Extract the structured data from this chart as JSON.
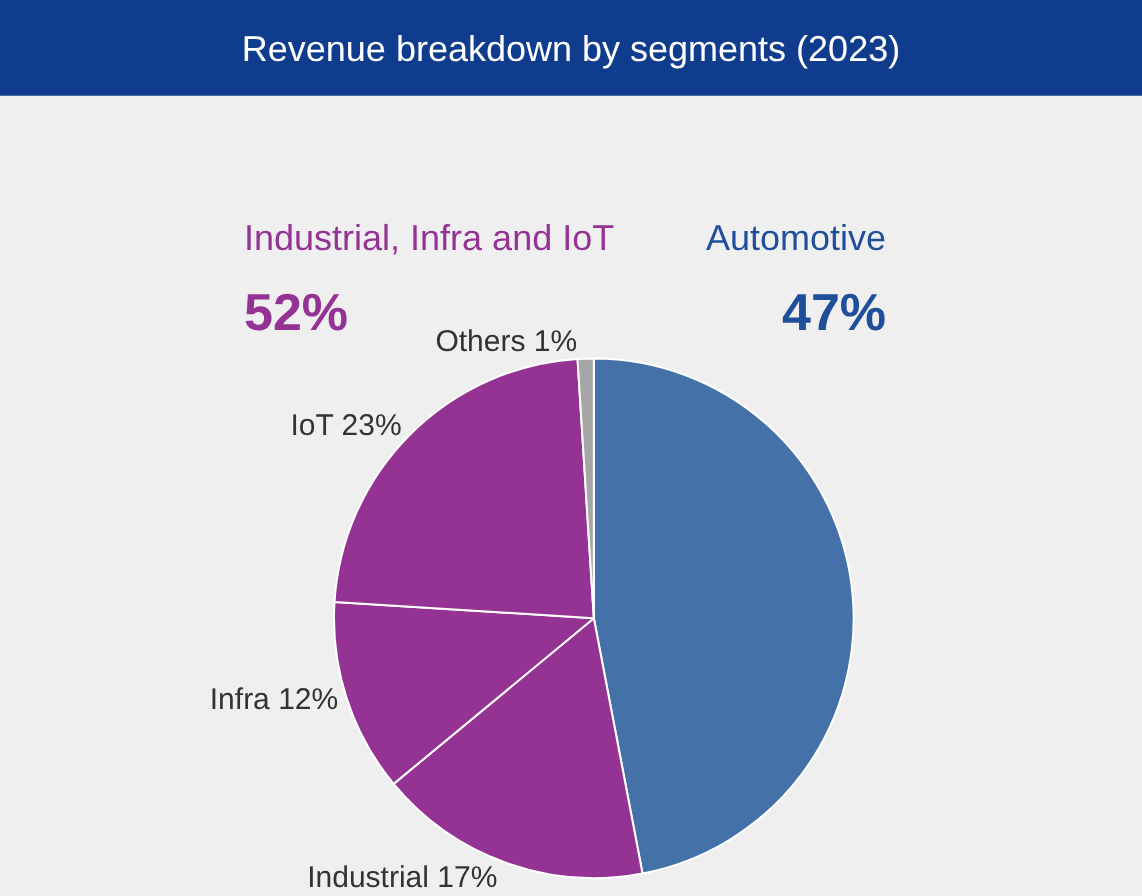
{
  "chart_data": {
    "type": "pie",
    "title": "Revenue breakdown by segments (2023)",
    "categories": [
      null,
      "Industrial 17%",
      "Infra 12%",
      "IoT 23%",
      "Others 1%"
    ],
    "values": [
      47,
      17,
      12,
      23,
      1
    ],
    "colors": [
      "#4472a8",
      "#943394",
      "#943394",
      "#943394",
      "#a6a6a6"
    ],
    "annotations": [
      "Industrial, Infra and IoT",
      "52%",
      "Automotive",
      "47%"
    ],
    "legend": false
  }
}
